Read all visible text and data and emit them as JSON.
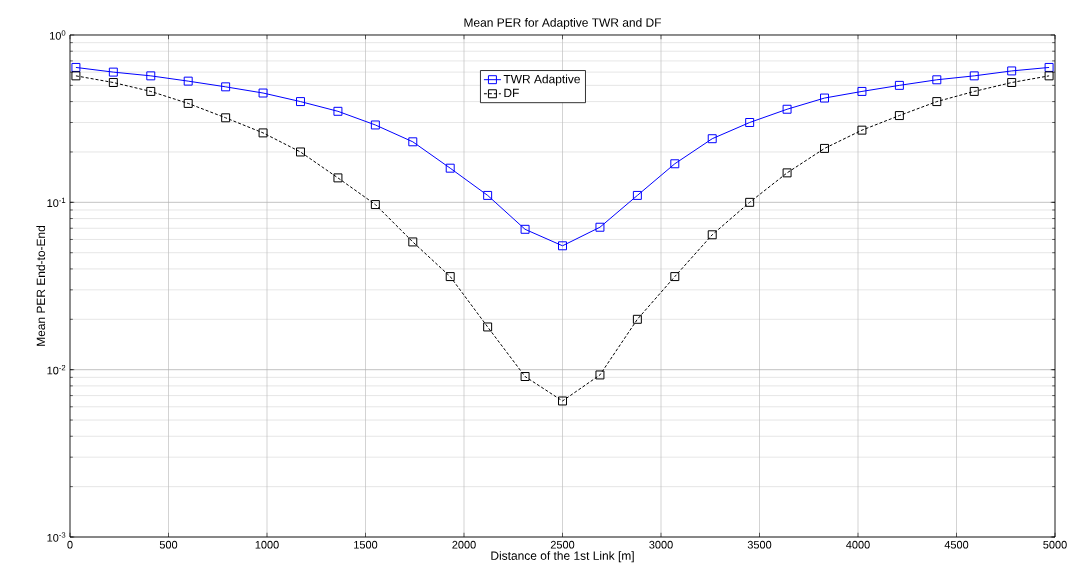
{
  "chart_data": {
    "type": "line",
    "title": "Mean PER for Adaptive TWR and DF",
    "xlabel": "Distance of the 1st Link [m]",
    "ylabel": "Mean PER End-to-End",
    "x": [
      30,
      220,
      410,
      600,
      790,
      980,
      1170,
      1360,
      1550,
      1740,
      1930,
      2120,
      2310,
      2500,
      2690,
      2880,
      3070,
      3260,
      3450,
      3640,
      3830,
      4020,
      4210,
      4400,
      4590,
      4780,
      4970
    ],
    "series": [
      {
        "name": "TWR Adaptive",
        "color": "#0000ff",
        "line_style": "solid",
        "values": [
          0.64,
          0.6,
          0.57,
          0.53,
          0.49,
          0.45,
          0.4,
          0.35,
          0.29,
          0.23,
          0.16,
          0.11,
          0.069,
          0.055,
          0.071,
          0.11,
          0.17,
          0.24,
          0.3,
          0.36,
          0.42,
          0.46,
          0.5,
          0.54,
          0.57,
          0.61,
          0.64
        ]
      },
      {
        "name": "DF",
        "color": "#000000",
        "line_style": "dashed",
        "values": [
          0.57,
          0.52,
          0.46,
          0.39,
          0.32,
          0.26,
          0.2,
          0.14,
          0.097,
          0.058,
          0.036,
          0.018,
          0.0091,
          0.0065,
          0.0093,
          0.02,
          0.036,
          0.064,
          0.1,
          0.15,
          0.21,
          0.27,
          0.33,
          0.4,
          0.46,
          0.52,
          0.57
        ]
      }
    ],
    "xlim": [
      0,
      5000
    ],
    "xticks": [
      0,
      500,
      1000,
      1500,
      2000,
      2500,
      3000,
      3500,
      4000,
      4500,
      5000
    ],
    "ylim": [
      0.001,
      1
    ],
    "yticks": [
      {
        "value": 0.001,
        "label": "10$^{-3}$"
      },
      {
        "value": 0.01,
        "label": "10$^{-2}$"
      },
      {
        "value": 0.1,
        "label": "10$^{-1}$"
      },
      {
        "value": 1,
        "label": "10$^{0}$"
      }
    ],
    "log": "y",
    "grid": true,
    "legend": "top",
    "marker": "square"
  }
}
